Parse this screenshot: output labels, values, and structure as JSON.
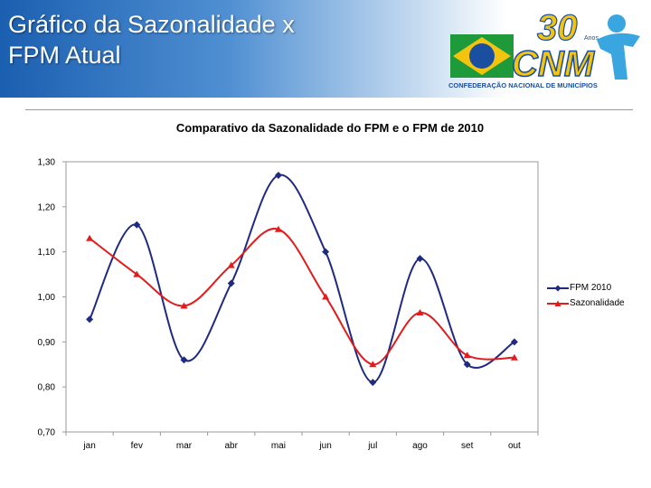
{
  "slide": {
    "title_line1": "Gráfico da Sazonalidade x",
    "title_line2": "FPM Atual"
  },
  "logo": {
    "anniversary_number": "30",
    "anniversary_word": "Anos",
    "acronym": "CNM",
    "full_name": "CONFEDERAÇÃO NACIONAL DE MUNICÍPIOS",
    "colors": {
      "blue": "#1a4fa0",
      "yellow": "#f2c40f",
      "green": "#1f9a3a",
      "sky": "#3aa6e0"
    }
  },
  "chart_data": {
    "type": "line",
    "title": "Comparativo da Sazonalidade do FPM e o FPM de 2010",
    "categories": [
      "jan",
      "fev",
      "mar",
      "abr",
      "mai",
      "jun",
      "jul",
      "ago",
      "set",
      "out"
    ],
    "series": [
      {
        "name": "FPM 2010",
        "color": "#1f2a80",
        "marker": "diamond",
        "values": [
          0.95,
          1.16,
          0.86,
          1.03,
          1.27,
          1.1,
          0.81,
          1.085,
          0.85,
          0.9
        ]
      },
      {
        "name": "Sazonalidade",
        "color": "#e01c1c",
        "marker": "triangle",
        "values": [
          1.13,
          1.05,
          0.98,
          1.07,
          1.15,
          1.0,
          0.85,
          0.965,
          0.87,
          0.865
        ]
      }
    ],
    "ylim": [
      0.7,
      1.3
    ],
    "yticks": [
      "1,30",
      "1,20",
      "1,10",
      "1,00",
      "0,90",
      "0,80",
      "0,70"
    ],
    "grid": false,
    "legend": "right",
    "xlabel": "",
    "ylabel": ""
  }
}
